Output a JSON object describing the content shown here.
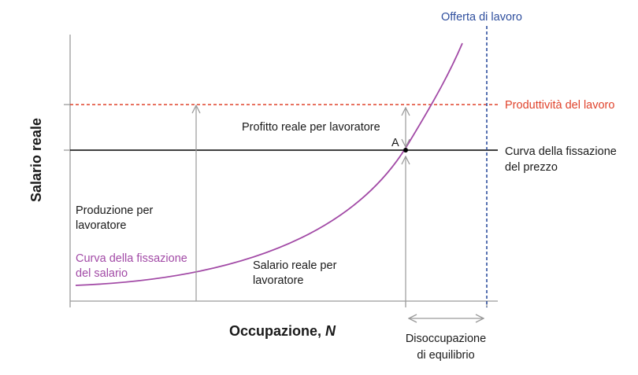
{
  "axes": {
    "y_title": "Salario reale",
    "x_title": "Occupazione, ",
    "x_title_var": "N"
  },
  "lines": {
    "labor_supply": "Offerta di lavoro",
    "productivity": "Produttività del lavoro",
    "price_setting": [
      "Curva della fissazione",
      "del prezzo"
    ],
    "wage_setting": [
      "Curva della fissazione",
      "del salario"
    ]
  },
  "annotations": {
    "profit": "Profitto reale per lavoratore",
    "point": "A",
    "output": [
      "Produzione per",
      "lavoratore"
    ],
    "real_wage": [
      "Salario reale per",
      "lavoratore"
    ],
    "unemployment": [
      "Disoccupazione",
      "di equilibrio"
    ]
  },
  "colors": {
    "productivity": "#e0432c",
    "labor_supply": "#2f4f9e",
    "wage_curve": "#a24aa6",
    "price_line": "#000000",
    "axis": "#9a9a9a",
    "arrow": "#9a9a9a"
  }
}
